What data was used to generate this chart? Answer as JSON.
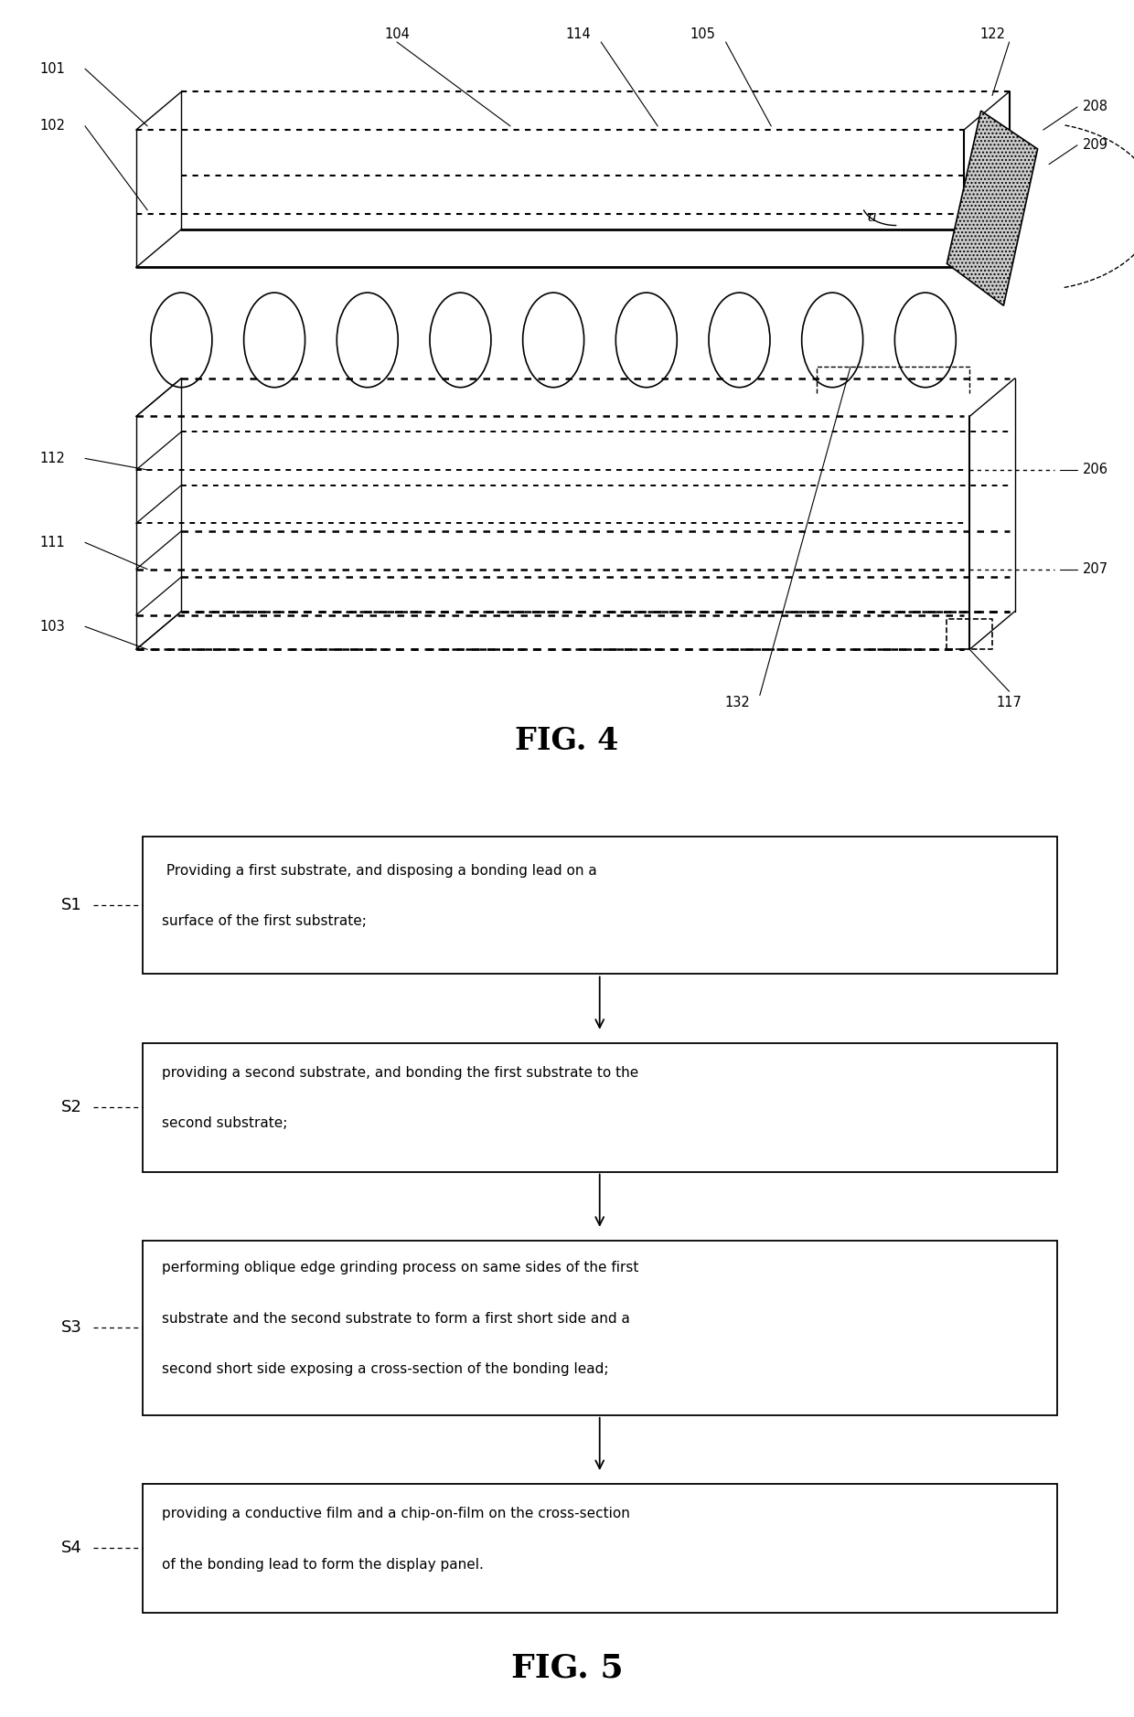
{
  "fig4_title": "FIG. 4",
  "fig5_title": "FIG. 5",
  "background_color": "#ffffff",
  "line_color": "#000000",
  "flowchart_steps": [
    {
      "label": "S1",
      "text": " Providing a first substrate, and disposing a bonding lead on a\nsurface of the first substrate;"
    },
    {
      "label": "S2",
      "text": "providing a second substrate, and bonding the first substrate to the\nsecond substrate;"
    },
    {
      "label": "S3",
      "text": "performing oblique edge grinding process on same sides of the first\nsubstrate and the second substrate to form a first short side and a\nsecond short side exposing a cross-section of the bonding lead;"
    },
    {
      "label": "S4",
      "text": "providing a conductive film and a chip-on-film on the cross-section\nof the bonding lead to form the display panel."
    }
  ]
}
